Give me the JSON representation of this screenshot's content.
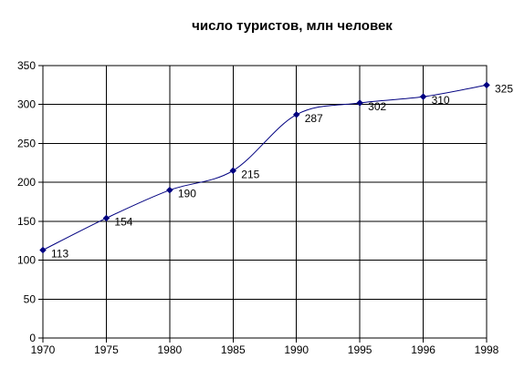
{
  "chart_data": {
    "type": "line",
    "title": "число туристов, млн человек",
    "xlabel": "",
    "ylabel": "",
    "categories": [
      "1970",
      "1975",
      "1980",
      "1985",
      "1990",
      "1995",
      "1996",
      "1998"
    ],
    "series": [
      {
        "values": [
          113,
          154,
          190,
          215,
          287,
          302,
          310,
          325
        ]
      }
    ],
    "ylim": [
      0,
      350
    ],
    "yticks": [
      0,
      50,
      100,
      150,
      200,
      250,
      300,
      350
    ],
    "grid": true,
    "legend": "none",
    "data_labels": true,
    "smooth": true,
    "colors": {
      "line": "#000080",
      "marker": "#000080",
      "grid": "#000000",
      "axis": "#000000",
      "text": "#000000"
    }
  }
}
